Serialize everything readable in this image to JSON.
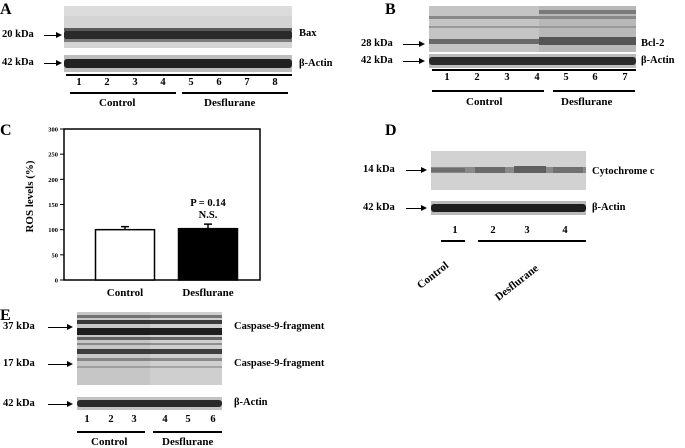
{
  "panels": {
    "A": {
      "letter": "A",
      "marker_bax": "20 kDa",
      "marker_actin": "42 kDa",
      "band_bax": "Bax",
      "band_actin": "β-Actin",
      "lanes": [
        "1",
        "2",
        "3",
        "4",
        "5",
        "6",
        "7",
        "8"
      ],
      "group_control": "Control",
      "group_treat": "Desflurane"
    },
    "B": {
      "letter": "B",
      "marker_bcl2": "28 kDa",
      "marker_actin": "42 kDa",
      "band_bcl2": "Bcl-2",
      "band_actin": "β-Actin",
      "lanes": [
        "1",
        "2",
        "3",
        "4",
        "5",
        "6",
        "7"
      ],
      "group_control": "Control",
      "group_treat": "Desflurane"
    },
    "C": {
      "letter": "C"
    },
    "D": {
      "letter": "D",
      "marker_cyto": "14 kDa",
      "marker_actin": "42 kDa",
      "band_cyto": "Cytochrome c",
      "band_actin": "β-Actin",
      "lanes": [
        "1",
        "2",
        "3",
        "4"
      ],
      "group_control": "Control",
      "group_treat": "Desflurane"
    },
    "E": {
      "letter": "E",
      "marker_37": "37 kDa",
      "marker_17": "17 kDa",
      "marker_actin": "42 kDa",
      "band_37": "Caspase-9-fragment",
      "band_17": "Caspase-9-fragment",
      "band_actin": "β-Actin",
      "lanes": [
        "1",
        "2",
        "3",
        "4",
        "5",
        "6"
      ],
      "group_control": "Control",
      "group_treat": "Desflurane"
    }
  },
  "chart_data": {
    "type": "bar",
    "categories": [
      "Control",
      "Desflurane"
    ],
    "values": [
      100,
      102
    ],
    "errors": [
      6,
      9
    ],
    "bar_colors": [
      "#ffffff",
      "#000000"
    ],
    "ylabel": "ROS levels (%)",
    "ylim": [
      0,
      300
    ],
    "yticks": [
      0,
      50,
      100,
      150,
      200,
      250,
      300
    ],
    "yticklabels": [
      "0",
      "50",
      "100",
      "150",
      "200",
      "250",
      "300"
    ],
    "annotation_p": "P = 0.14",
    "annotation_ns": "N.S.",
    "grid": false
  }
}
